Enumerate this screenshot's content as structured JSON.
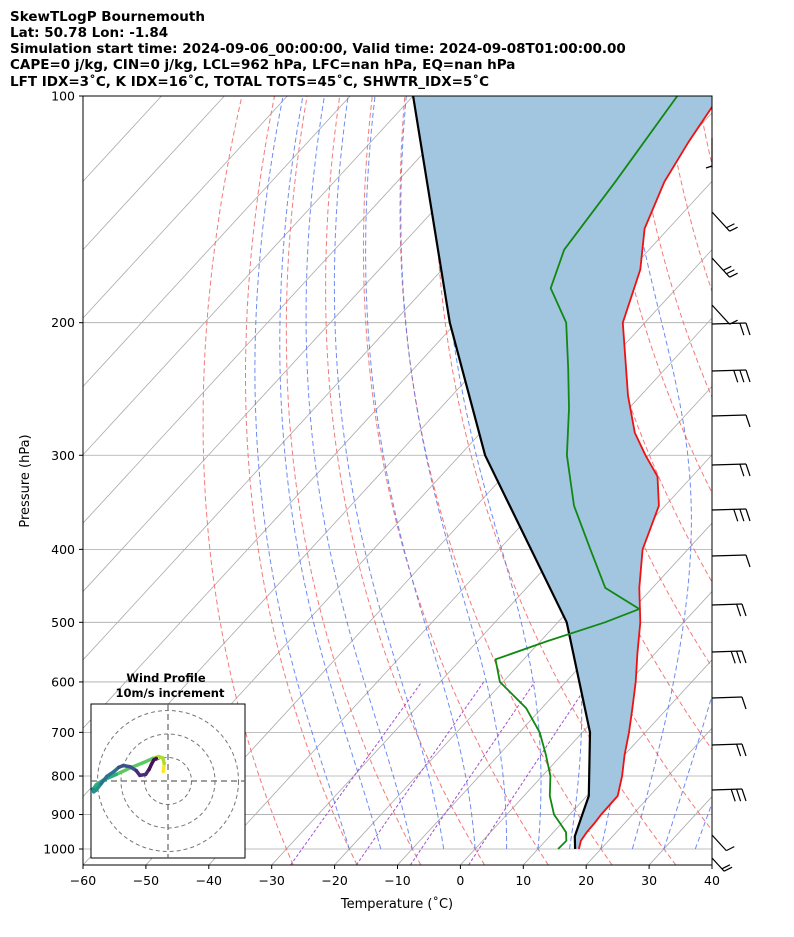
{
  "header": {
    "line1": "SkewTLogP Bournemouth",
    "line2": "Lat: 50.78   Lon: -1.84",
    "line3": "Simulation start time: 2024-09-06_00:00:00, Valid time: 2024-09-08T01:00:00.00",
    "line4": "CAPE=0 j/kg, CIN=0 j/kg, LCL=962 hPa, LFC=nan hPa, EQ=nan hPa",
    "line5": "LFT IDX=3˚C, K IDX=16˚C, TOTAL TOTS=45˚C, SHWTR_IDX=5˚C"
  },
  "colors": {
    "temperature": "#ee1111",
    "dewpoint": "#118811",
    "parcel": "#000000",
    "shade": "#a3c6e0",
    "dry_adiabat": "#f26b6b",
    "moist_adiabat": "#5577ee",
    "mixing_ratio": "#a050d0",
    "isotherm": "#aaaaaa",
    "isobar": "#aaaaaa"
  },
  "chart_data": {
    "type": "line",
    "title": "SkewTLogP Bournemouth",
    "xlabel": "Temperature (˚C)",
    "ylabel": "Pressure (hPa)",
    "xlim": [
      -60,
      40
    ],
    "ylim": [
      1050,
      100
    ],
    "xticks": [
      "−60",
      "−50",
      "−40",
      "−30",
      "−20",
      "−10",
      "0",
      "10",
      "20",
      "30",
      "40"
    ],
    "yticks": [
      "100",
      "200",
      "300",
      "400",
      "500",
      "600",
      "700",
      "800",
      "900",
      "1000"
    ],
    "temperature": {
      "name": "Temperature",
      "p": [
        1000,
        975,
        950,
        925,
        900,
        850,
        800,
        750,
        700,
        650,
        600,
        550,
        500,
        450,
        400,
        350,
        320,
        300,
        280,
        250,
        200,
        170,
        150,
        130,
        115,
        100
      ],
      "t": [
        16.5,
        15.6,
        15.3,
        15.2,
        15.0,
        14.9,
        12.7,
        10.0,
        7.4,
        4.4,
        1.1,
        -2.8,
        -6.9,
        -12.1,
        -17.2,
        -21.0,
        -25.5,
        -30.5,
        -35.5,
        -42.0,
        -53.5,
        -58.5,
        -63.8,
        -67.5,
        -69.5,
        -71.3
      ]
    },
    "dewpoint": {
      "name": "Dewpoint",
      "p": [
        1000,
        975,
        950,
        925,
        900,
        850,
        800,
        750,
        700,
        650,
        600,
        560,
        530,
        500,
        480,
        450,
        400,
        350,
        300,
        260,
        230,
        200,
        180,
        160,
        130,
        100
      ],
      "t": [
        13.2,
        13.3,
        12.0,
        9.8,
        7.5,
        4.1,
        1.3,
        -2.5,
        -6.8,
        -12.5,
        -20.5,
        -24.5,
        -19.0,
        -12.5,
        -9.0,
        -17.5,
        -25.5,
        -34.5,
        -43.0,
        -49.5,
        -55.5,
        -62.5,
        -70.0,
        -73.5,
        -75.3,
        -78.0
      ]
    },
    "parcel": {
      "name": "Parcel",
      "p": [
        1000,
        962,
        850,
        700,
        500,
        300,
        200,
        100
      ],
      "t": [
        15.9,
        14.0,
        10.3,
        1.2,
        -18.6,
        -56.0,
        -81.0,
        -120.0
      ]
    },
    "wind_barbs": [
      {
        "p": 1000,
        "speed": "20 kt"
      },
      {
        "p": 100,
        "speed": "5 kt"
      }
    ],
    "hodograph": {
      "title": "Wind Profile",
      "subtitle": "10m/s increment",
      "rings_ms": [
        10,
        20,
        30
      ],
      "u": [
        -2.0,
        -1.6,
        -2.2,
        -4.0,
        -6.5,
        -10.5,
        -16.5,
        -22.0,
        -27.5,
        -30.5,
        -31.8,
        -31.6,
        -30.5,
        -28.5,
        -26.0,
        -23.0,
        -21.0,
        -19.0,
        -16.0,
        -13.5,
        -12.0,
        -9.5,
        -8.0,
        -7.0,
        -6.0,
        -5.0
      ],
      "v": [
        4.0,
        7.5,
        9.8,
        10.4,
        9.6,
        7.8,
        5.4,
        2.8,
        0.4,
        -1.6,
        -3.4,
        -4.6,
        -3.8,
        -1.2,
        2.0,
        4.0,
        5.8,
        6.6,
        6.0,
        4.4,
        2.4,
        2.8,
        5.0,
        7.2,
        9.0,
        9.6
      ]
    }
  }
}
